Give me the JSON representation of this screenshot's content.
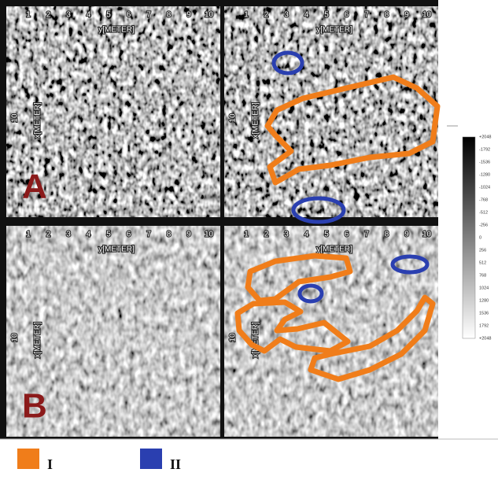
{
  "panels": [
    {
      "label": "A",
      "x_ticks": [
        "1",
        "2",
        "3",
        "4",
        "5",
        "6",
        "7",
        "8",
        "9",
        "10"
      ],
      "x_axis_label": "y[METER]",
      "y_tick": "10",
      "y_axis_label": "x[METER]"
    },
    {
      "x_ticks": [
        "1",
        "2",
        "3",
        "4",
        "5",
        "6",
        "7",
        "8",
        "9",
        "10"
      ],
      "x_axis_label": "y[METER]",
      "y_tick": "10",
      "y_axis_label": "x[METER]"
    },
    {
      "label": "B",
      "x_ticks": [
        "1",
        "2",
        "3",
        "4",
        "5",
        "6",
        "7",
        "8",
        "9",
        "10"
      ],
      "x_axis_label": "y[METER]",
      "y_tick": "10",
      "y_axis_label": "x[METER]"
    },
    {
      "x_ticks": [
        "1",
        "2",
        "3",
        "4",
        "5",
        "6",
        "7",
        "8",
        "9",
        "10"
      ],
      "x_axis_label": "y[METER]",
      "y_tick": "10",
      "y_axis_label": "x[METER]"
    }
  ],
  "colorbar": {
    "ticks": [
      "+2048",
      "-1792",
      "-1536",
      "-1280",
      "-1024",
      "-768",
      "-512",
      "-256",
      "0",
      "256",
      "512",
      "768",
      "1024",
      "1280",
      "1536",
      "1792",
      "+2048"
    ]
  },
  "legend": [
    {
      "label": "I"
    },
    {
      "label": "II"
    }
  ]
}
